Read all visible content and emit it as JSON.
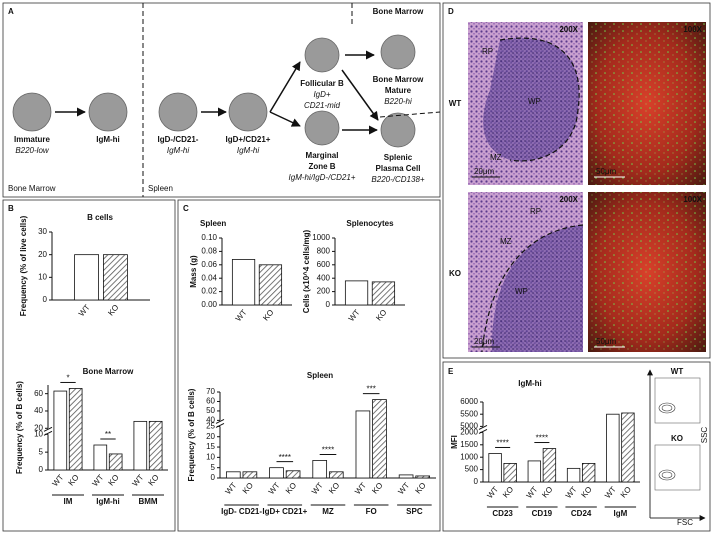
{
  "panel_labels": [
    "A",
    "B",
    "C",
    "D",
    "E"
  ],
  "panel_a": {
    "nodes": [
      {
        "title": [
          "Immature"
        ],
        "subtitle": [
          "B220-low"
        ]
      },
      {
        "title": [
          "IgM-hi"
        ]
      },
      {
        "title": [
          "IgD-/CD21-"
        ],
        "subtitle": [
          "IgM-hi"
        ]
      },
      {
        "title": [
          "IgD+/CD21+"
        ],
        "subtitle": [
          "IgM-hi"
        ]
      },
      {
        "title": [
          "Follicular B"
        ],
        "subtitle": [
          "IgD+",
          "CD21-mid"
        ]
      },
      {
        "title": [
          "Marginal",
          "Zone B"
        ],
        "subtitle": [
          "IgM-hi/IgD-/CD21+"
        ]
      },
      {
        "title": [
          "Bone Marrow",
          "Mature"
        ],
        "subtitle": [
          "B220-hi"
        ]
      },
      {
        "title": [
          "Splenic",
          "Plasma Cell"
        ],
        "subtitle": [
          "B220-/CD138+"
        ]
      }
    ],
    "regions": [
      "Bone Marrow",
      "Spleen",
      "Bone Marrow"
    ]
  },
  "panel_d": {
    "magnifications": [
      "200X",
      "100X"
    ],
    "rows": [
      {
        "label": "WT",
        "regions": [
          "RP",
          "WP",
          "MZ"
        ],
        "scales": [
          "20μm",
          "50μm"
        ]
      },
      {
        "label": "KO",
        "regions": [
          "RP",
          "MZ",
          "WP"
        ],
        "scales": [
          "20μm",
          "50μm"
        ]
      }
    ]
  },
  "panel_e_flow": {
    "plots": [
      "WT",
      "KO"
    ],
    "x_label": "FSC",
    "y_label": "SSC"
  },
  "chart_data": [
    {
      "type": "bar",
      "title": "B cells",
      "y_label": "Frequency (% of live cells)",
      "categories": [
        null
      ],
      "series": [
        {
          "name": "WT",
          "color": "#ffffff",
          "values": [
            20
          ]
        },
        {
          "name": "KO",
          "color": "#555555",
          "hatch": true,
          "values": [
            20
          ]
        }
      ],
      "ylim": [
        0,
        30
      ],
      "yticks": [
        0,
        10,
        20,
        30
      ]
    },
    {
      "type": "bar",
      "title": "Bone Marrow",
      "y_label": "Frequency (% of B cells)",
      "categories": [
        "IM",
        "IgM-hi",
        "BMM"
      ],
      "series": [
        {
          "name": "WT",
          "color": "#ffffff",
          "values": [
            63,
            7,
            28
          ]
        },
        {
          "name": "KO",
          "color": "#555555",
          "hatch": true,
          "values": [
            66,
            4.5,
            28
          ]
        }
      ],
      "significance": [
        "*",
        "**",
        null
      ],
      "ylim": [
        0,
        70
      ],
      "axis_break": [
        10,
        20
      ],
      "yticks": [
        0,
        5,
        10,
        20,
        40,
        60
      ]
    },
    {
      "type": "bar",
      "title": "Spleen",
      "y_label": "Mass (g)",
      "categories": [
        null
      ],
      "series": [
        {
          "name": "WT",
          "color": "#ffffff",
          "values": [
            0.068
          ]
        },
        {
          "name": "KO",
          "color": "#555555",
          "hatch": true,
          "values": [
            0.06
          ]
        }
      ],
      "ylim": [
        0,
        0.1
      ],
      "yticks": [
        {
          "value": 0,
          "label": "0.00"
        },
        {
          "value": 0.02,
          "label": "0.02"
        },
        {
          "value": 0.04,
          "label": "0.04"
        },
        {
          "value": 0.06,
          "label": "0.06"
        },
        {
          "value": 0.08,
          "label": "0.08"
        },
        {
          "value": 0.1,
          "label": "0.10"
        }
      ]
    },
    {
      "type": "bar",
      "title": "Splenocytes",
      "y_label": "Cells (x10^4 cells/mg)",
      "categories": [
        null
      ],
      "series": [
        {
          "name": "WT",
          "color": "#ffffff",
          "values": [
            360
          ]
        },
        {
          "name": "KO",
          "color": "#555555",
          "hatch": true,
          "values": [
            345
          ]
        }
      ],
      "ylim": [
        0,
        1000
      ],
      "yticks": [
        0,
        200,
        400,
        600,
        800,
        1000
      ]
    },
    {
      "type": "bar",
      "title": "Spleen",
      "y_label": "Frequency (% of B cells)",
      "categories": [
        "IgD- CD21-",
        "IgD+ CD21+",
        "MZ",
        "FO",
        "SPC"
      ],
      "series": [
        {
          "name": "WT",
          "color": "#ffffff",
          "values": [
            3,
            5,
            8.5,
            50,
            1.5
          ]
        },
        {
          "name": "KO",
          "color": "#555555",
          "hatch": true,
          "values": [
            3,
            3.5,
            3,
            62,
            1
          ]
        }
      ],
      "significance": [
        null,
        "****",
        "****",
        "***",
        null
      ],
      "ylim": [
        0,
        70
      ],
      "axis_break": [
        25,
        40
      ],
      "yticks": [
        0,
        5,
        10,
        15,
        20,
        25,
        40,
        50,
        60,
        70
      ]
    },
    {
      "type": "bar",
      "title": "IgM-hi",
      "y_label": "MFI",
      "categories": [
        "CD23",
        "CD19",
        "CD24",
        "IgM"
      ],
      "series": [
        {
          "name": "WT",
          "color": "#ffffff",
          "values": [
            1150,
            850,
            550,
            5500
          ]
        },
        {
          "name": "KO",
          "color": "#555555",
          "hatch": true,
          "values": [
            750,
            1350,
            750,
            5550
          ]
        }
      ],
      "significance": [
        "****",
        "****",
        null,
        null
      ],
      "ylim": [
        0,
        6000
      ],
      "axis_break": [
        2000,
        5000
      ],
      "yticks": [
        0,
        500,
        1000,
        1500,
        2000,
        5000,
        5500,
        6000
      ]
    }
  ]
}
